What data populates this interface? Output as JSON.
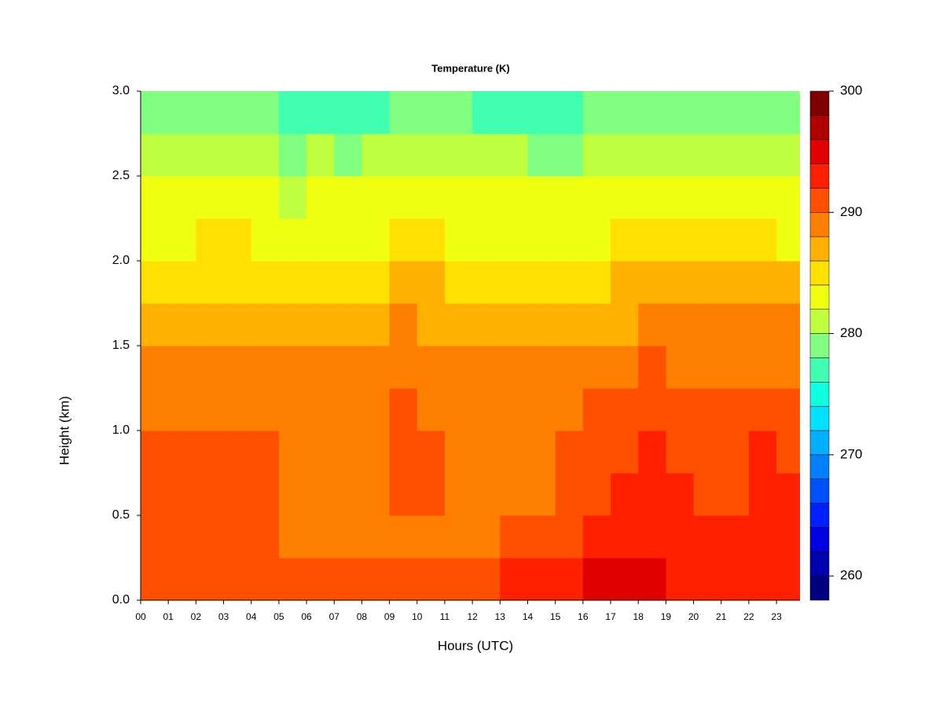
{
  "chart_data": {
    "type": "heatmap",
    "title": "Temperature (K)",
    "xlabel": "Hours (UTC)",
    "ylabel": "Height (km)",
    "x": [
      0.5,
      1.5,
      2.5,
      3.5,
      4.5,
      5.5,
      6.5,
      7.5,
      8.5,
      9.5,
      10.5,
      11.5,
      12.5,
      13.5,
      14.5,
      15.5,
      16.5,
      17.5,
      18.5,
      19.5,
      20.5,
      21.5,
      22.5,
      23.5
    ],
    "y": [
      0.125,
      0.375,
      0.625,
      0.875,
      1.125,
      1.375,
      1.625,
      1.875,
      2.125,
      2.375,
      2.625,
      2.875
    ],
    "z": [
      [
        291,
        291,
        291,
        291,
        291,
        291,
        290,
        290,
        290,
        290,
        290,
        290,
        291,
        292,
        293,
        293,
        294,
        294,
        294,
        293,
        293,
        293,
        293,
        293
      ],
      [
        290,
        290,
        290,
        290,
        290,
        289,
        289,
        288,
        288,
        288,
        288,
        288,
        289,
        290,
        291,
        291,
        292,
        292,
        293,
        292,
        292,
        292,
        292,
        292
      ],
      [
        291,
        291,
        291,
        291,
        290,
        289,
        289,
        289,
        289,
        290,
        290,
        289,
        289,
        289,
        289,
        290,
        291,
        292,
        292,
        292,
        291,
        291,
        292,
        292
      ],
      [
        290,
        290,
        290,
        290,
        290,
        289,
        289,
        289,
        289,
        290,
        290,
        289,
        289,
        289,
        289,
        290,
        290,
        291,
        292,
        291,
        291,
        291,
        292,
        291
      ],
      [
        289,
        289,
        289,
        289,
        289,
        289,
        289,
        289,
        289,
        290,
        289,
        289,
        289,
        289,
        289,
        289,
        290,
        290,
        291,
        290,
        290,
        290,
        291,
        290
      ],
      [
        288,
        288,
        288,
        288,
        288,
        288,
        288,
        288,
        288,
        289,
        289,
        288,
        288,
        288,
        288,
        288,
        289,
        289,
        290,
        289,
        289,
        289,
        289,
        289
      ],
      [
        287,
        287,
        287,
        286,
        286,
        286,
        286,
        287,
        287,
        288,
        287,
        287,
        287,
        287,
        287,
        287,
        287,
        287,
        288,
        288,
        288,
        288,
        288,
        288
      ],
      [
        285,
        285,
        285,
        285,
        285,
        285,
        285,
        285,
        285,
        286,
        286,
        285,
        285,
        285,
        285,
        285,
        285,
        286,
        286,
        286,
        286,
        286,
        286,
        286
      ],
      [
        283,
        283,
        284,
        284,
        283,
        283,
        283,
        283,
        283,
        284,
        284,
        283,
        283,
        283,
        283,
        283,
        283,
        284,
        284,
        284,
        284,
        284,
        284,
        283
      ],
      [
        282,
        282,
        282,
        282,
        282,
        281,
        282,
        282,
        282,
        282,
        282,
        282,
        282,
        282,
        282,
        282,
        282,
        282,
        282,
        282,
        282,
        282,
        282,
        282
      ],
      [
        280,
        280,
        280,
        280,
        280,
        279,
        280,
        279,
        280,
        280,
        280,
        280,
        280,
        280,
        279,
        279,
        280,
        280,
        280,
        280,
        280,
        280,
        280,
        280
      ],
      [
        278,
        278,
        278,
        278,
        278,
        277,
        277,
        277,
        277,
        278,
        278,
        278,
        277,
        277,
        277,
        277,
        278,
        278,
        278,
        278,
        278,
        278,
        278,
        278
      ]
    ],
    "xlim": [
      0,
      23.85
    ],
    "ylim": [
      0,
      3
    ],
    "xticks": [
      {
        "value": 0,
        "label": "00"
      },
      {
        "value": 1,
        "label": "01"
      },
      {
        "value": 2,
        "label": "02"
      },
      {
        "value": 3,
        "label": "03"
      },
      {
        "value": 4,
        "label": "04"
      },
      {
        "value": 5,
        "label": "05"
      },
      {
        "value": 6,
        "label": "06"
      },
      {
        "value": 7,
        "label": "07"
      },
      {
        "value": 8,
        "label": "08"
      },
      {
        "value": 9,
        "label": "09"
      },
      {
        "value": 10,
        "label": "10"
      },
      {
        "value": 11,
        "label": "11"
      },
      {
        "value": 12,
        "label": "12"
      },
      {
        "value": 13,
        "label": "13"
      },
      {
        "value": 14,
        "label": "14"
      },
      {
        "value": 15,
        "label": "15"
      },
      {
        "value": 16,
        "label": "16"
      },
      {
        "value": 17,
        "label": "17"
      },
      {
        "value": 18,
        "label": "18"
      },
      {
        "value": 19,
        "label": "19"
      },
      {
        "value": 20,
        "label": "20"
      },
      {
        "value": 21,
        "label": "21"
      },
      {
        "value": 22,
        "label": "22"
      },
      {
        "value": 23,
        "label": "23"
      }
    ],
    "yticks": [
      {
        "value": 0,
        "label": "0.0"
      },
      {
        "value": 0.5,
        "label": "0.5"
      },
      {
        "value": 1,
        "label": "1.0"
      },
      {
        "value": 1.5,
        "label": "1.5"
      },
      {
        "value": 2,
        "label": "2.0"
      },
      {
        "value": 2.5,
        "label": "2.5"
      },
      {
        "value": 3,
        "label": "3.0"
      }
    ],
    "zlim": [
      258,
      300
    ],
    "zticks": [
      260,
      270,
      280,
      290,
      300
    ],
    "colors": [
      "#000080",
      "#0000b0",
      "#0000e0",
      "#0020ff",
      "#0050ff",
      "#0080ff",
      "#00b0ff",
      "#00e0ff",
      "#10ffe0",
      "#40ffb0",
      "#80ff80",
      "#c0ff40",
      "#f0ff10",
      "#ffe000",
      "#ffb000",
      "#ff8000",
      "#ff5000",
      "#ff2000",
      "#e00000",
      "#b00000",
      "#800000"
    ]
  }
}
